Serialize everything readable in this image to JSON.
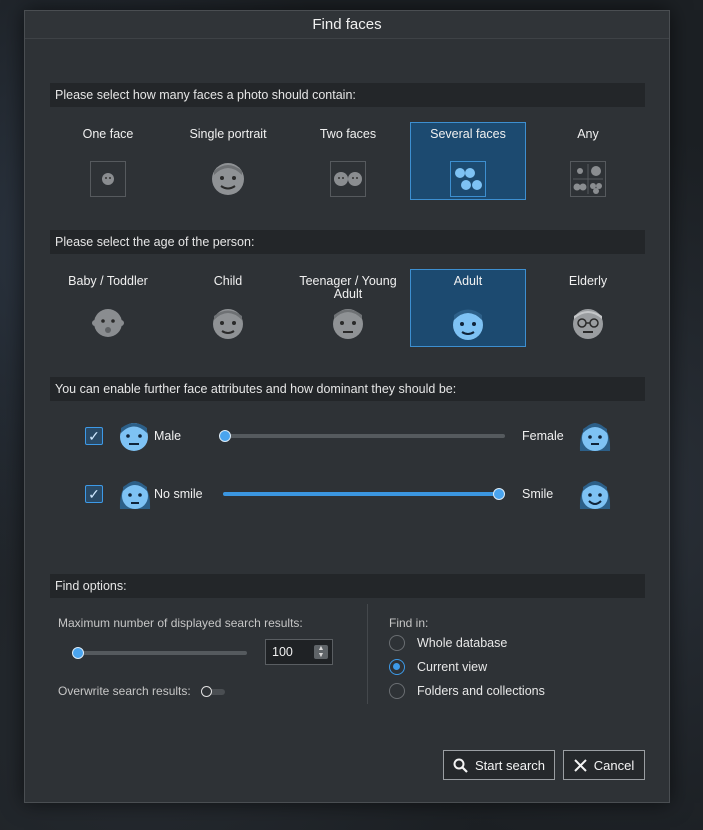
{
  "dialog": {
    "title": "Find faces"
  },
  "faces_count": {
    "header": "Please select how many faces a photo should contain:",
    "options": [
      {
        "label": "One face",
        "icon": "single-small-face-icon"
      },
      {
        "label": "Single portrait",
        "icon": "single-portrait-face-icon"
      },
      {
        "label": "Two faces",
        "icon": "two-faces-icon"
      },
      {
        "label": "Several faces",
        "icon": "several-faces-icon"
      },
      {
        "label": "Any",
        "icon": "any-faces-icon"
      }
    ],
    "selected": "Several faces"
  },
  "age": {
    "header": "Please select the age of the person:",
    "options": [
      {
        "label": "Baby / Toddler",
        "icon": "baby-face-icon"
      },
      {
        "label": "Child",
        "icon": "child-face-icon"
      },
      {
        "label": "Teenager / Young Adult",
        "icon": "teen-face-icon"
      },
      {
        "label": "Adult",
        "icon": "adult-face-icon"
      },
      {
        "label": "Elderly",
        "icon": "elderly-face-icon"
      }
    ],
    "selected": "Adult"
  },
  "attributes": {
    "header": "You can enable further face attributes and how dominant they should be:",
    "gender": {
      "enabled": true,
      "left_label": "Male",
      "right_label": "Female",
      "value": 0.0
    },
    "smile": {
      "enabled": true,
      "left_label": "No smile",
      "right_label": "Smile",
      "value": 1.0
    }
  },
  "find_options": {
    "header": "Find options:",
    "max_results_label": "Maximum number of displayed search results:",
    "max_results_value": "100",
    "max_results_slider": 0.0,
    "overwrite_label": "Overwrite search results:",
    "overwrite_enabled": false,
    "find_in_label": "Find in:",
    "find_in_options": [
      "Whole database",
      "Current view",
      "Folders and collections"
    ],
    "find_in_selected": "Current view"
  },
  "buttons": {
    "start": "Start search",
    "cancel": "Cancel"
  },
  "colors": {
    "accent": "#3d9ae8",
    "selected_tile": "#1c4a70",
    "dialog_bg": "#2e3236",
    "header_bg": "#232629"
  }
}
